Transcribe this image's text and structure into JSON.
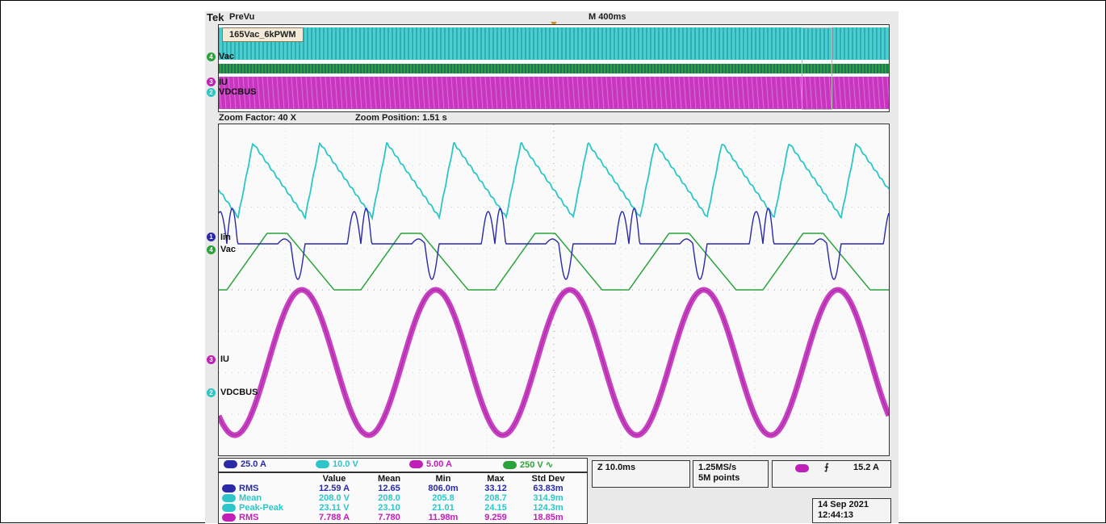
{
  "header": {
    "brand": "Tek",
    "mode": "PreVu",
    "timebase": "M 400ms"
  },
  "preview": {
    "label": "165Vac_6kPWM",
    "channels": [
      "Vac",
      "IU",
      "VDCBUS"
    ]
  },
  "zoom": {
    "factor": "Zoom Factor: 40 X",
    "position": "Zoom Position: 1.51 s"
  },
  "chart_data": {
    "type": "line",
    "series": [
      {
        "name": "VDCBUS",
        "color": "#2cc6c8"
      },
      {
        "name": "Iin",
        "color": "#2a2aa8"
      },
      {
        "name": "Vac",
        "color": "#2aa33a"
      },
      {
        "name": "IU",
        "color": "#c020b8"
      }
    ],
    "labels": [
      "Iin",
      "Vac",
      "IU",
      "VDCBUS"
    ],
    "grid": true
  },
  "scales": [
    {
      "num": "1",
      "value": "25.0 A",
      "color": "#2a2aa8"
    },
    {
      "num": "2",
      "value": "10.0 V",
      "color": "#2cc6c8"
    },
    {
      "num": "3",
      "value": "5.00 A",
      "color": "#c020b8"
    },
    {
      "num": "4",
      "value": "250 V",
      "extra": "∿",
      "color": "#2aa33a"
    }
  ],
  "measurements": {
    "headers": [
      "",
      "Value",
      "Mean",
      "Min",
      "Max",
      "Std Dev"
    ],
    "rows": [
      {
        "ch": "1",
        "color": "#2a2aa8",
        "cells": [
          "RMS",
          "12.59 A",
          "12.65",
          "806.0m",
          "33.12",
          "63.83m"
        ]
      },
      {
        "ch": "2",
        "color": "#2cc6c8",
        "cells": [
          "Mean",
          "208.0 V",
          "208.0",
          "205.8",
          "208.7",
          "314.9m"
        ]
      },
      {
        "ch": "2",
        "color": "#2cc6c8",
        "cells": [
          "Peak-Peak",
          "23.11 V",
          "23.10",
          "21.01",
          "24.15",
          "124.3m"
        ]
      },
      {
        "ch": "3",
        "color": "#c020b8",
        "cells": [
          "RMS",
          "7.788 A",
          "7.780",
          "11.98m",
          "9.259",
          "18.85m"
        ]
      }
    ]
  },
  "horizontal": {
    "zoom_time": "Z 10.0ms",
    "sample_rate": "1.25MS/s",
    "points": "5M points"
  },
  "trigger": {
    "channel": "3",
    "slope": "⨍",
    "level": "15.2 A",
    "color": "#c020b8"
  },
  "timestamp": {
    "date": "14 Sep  2021",
    "time": "12:44:13"
  }
}
